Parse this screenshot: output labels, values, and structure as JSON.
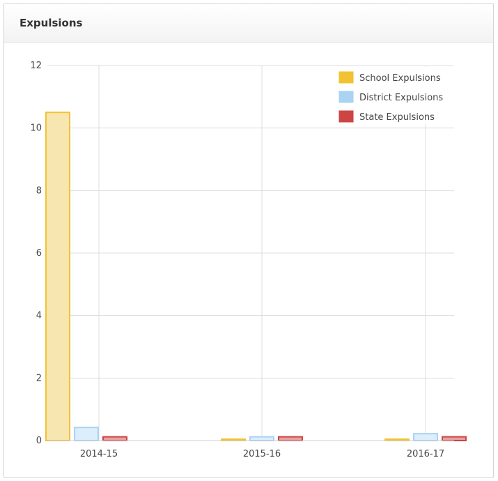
{
  "panel": {
    "title": "Expulsions"
  },
  "chart_data": {
    "type": "bar",
    "categories": [
      "2014-15",
      "2015-16",
      "2016-17"
    ],
    "series": [
      {
        "name": "School Expulsions",
        "values": [
          10.5,
          0.03,
          0.03
        ],
        "color": "#f1c232",
        "fill": "#f8e6b0"
      },
      {
        "name": "District Expulsions",
        "values": [
          0.42,
          0.12,
          0.22
        ],
        "color": "#a9d2f3",
        "fill": "#dcedfb"
      },
      {
        "name": "State Expulsions",
        "values": [
          0.12,
          0.12,
          0.12
        ],
        "color": "#cc4444",
        "fill": "#e8a0a0"
      }
    ],
    "ylim": [
      0,
      12
    ],
    "yticks": [
      "0",
      "2",
      "4",
      "6",
      "8",
      "10",
      "12"
    ],
    "grid": true,
    "legend_position": "top-right"
  }
}
